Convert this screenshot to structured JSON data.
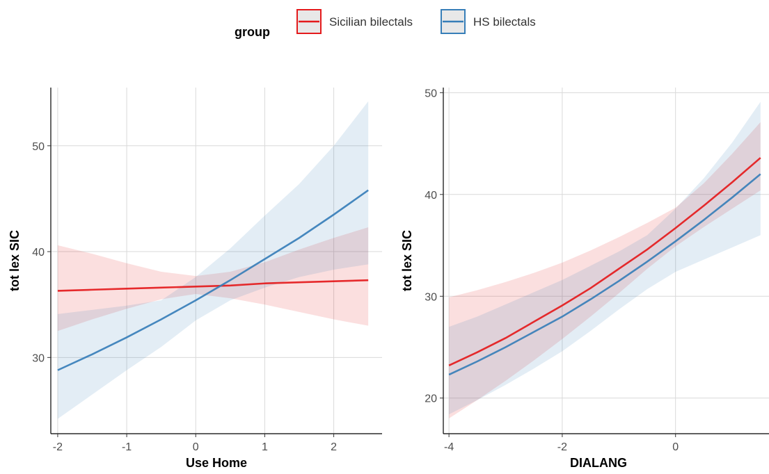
{
  "legend": {
    "title": "group",
    "position": "top-center",
    "entries": [
      {
        "label": "Sicilian bilectals",
        "color": "#E41A1C"
      },
      {
        "label": "HS bilectals",
        "color": "#377EB8"
      }
    ]
  },
  "chart_data": [
    {
      "type": "line",
      "xlabel": "Use Home",
      "ylabel": "tot lex SIC",
      "xlim": [
        -2.1,
        2.7
      ],
      "ylim": [
        22.8,
        55.5
      ],
      "xticks": [
        -2,
        -1,
        0,
        1,
        2
      ],
      "yticks": [
        30,
        40,
        50
      ],
      "grid": true,
      "series": [
        {
          "name": "Sicilian bilectals",
          "color": "#E41A1C",
          "x": [
            -2,
            -1.5,
            -1,
            -0.5,
            0,
            0.5,
            1,
            1.5,
            2,
            2.5
          ],
          "y": [
            36.3,
            36.4,
            36.5,
            36.6,
            36.7,
            36.8,
            37.0,
            37.1,
            37.2,
            37.3
          ],
          "lower": [
            32.5,
            33.6,
            34.6,
            35.5,
            36.0,
            35.6,
            35.0,
            34.3,
            33.6,
            33.0
          ],
          "upper": [
            40.6,
            39.8,
            38.9,
            38.1,
            37.7,
            38.1,
            39.0,
            40.2,
            41.3,
            42.3
          ]
        },
        {
          "name": "HS bilectals",
          "color": "#377EB8",
          "x": [
            -2,
            -1.5,
            -1,
            -0.5,
            0,
            0.5,
            1,
            1.5,
            2,
            2.5
          ],
          "y": [
            28.8,
            30.3,
            31.9,
            33.6,
            35.4,
            37.3,
            39.3,
            41.3,
            43.5,
            45.8
          ],
          "lower": [
            24.2,
            26.5,
            28.8,
            31.0,
            33.5,
            35.4,
            36.6,
            37.6,
            38.3,
            38.8
          ],
          "upper": [
            34.1,
            34.5,
            34.9,
            35.4,
            37.6,
            40.3,
            43.4,
            46.4,
            50.0,
            54.2
          ]
        }
      ]
    },
    {
      "type": "line",
      "xlabel": "DIALANG",
      "ylabel": "tot lex SIC",
      "xlim": [
        -4.1,
        1.65
      ],
      "ylim": [
        16.5,
        50.5
      ],
      "xticks": [
        -4,
        -2,
        0
      ],
      "yticks": [
        20,
        30,
        40,
        50
      ],
      "grid": true,
      "series": [
        {
          "name": "Sicilian bilectals",
          "color": "#E41A1C",
          "x": [
            -4,
            -3.5,
            -3,
            -2.5,
            -2,
            -1.5,
            -1,
            -0.5,
            0,
            0.5,
            1,
            1.5
          ],
          "y": [
            23.2,
            24.5,
            25.9,
            27.5,
            29.1,
            30.8,
            32.7,
            34.6,
            36.7,
            38.9,
            41.2,
            43.6
          ],
          "lower": [
            18.0,
            19.8,
            21.7,
            23.7,
            25.8,
            28.0,
            30.3,
            32.7,
            34.9,
            36.8,
            38.6,
            40.4
          ],
          "upper": [
            29.9,
            30.6,
            31.4,
            32.3,
            33.3,
            34.5,
            35.8,
            37.2,
            38.7,
            41.1,
            44.0,
            47.1
          ]
        },
        {
          "name": "HS bilectals",
          "color": "#377EB8",
          "x": [
            -4,
            -3.5,
            -3,
            -2.5,
            -2,
            -1.5,
            -1,
            -0.5,
            0,
            0.5,
            1,
            1.5
          ],
          "y": [
            22.3,
            23.6,
            25.0,
            26.5,
            28.0,
            29.7,
            31.5,
            33.4,
            35.4,
            37.5,
            39.7,
            42.0
          ],
          "lower": [
            18.4,
            19.8,
            21.3,
            22.9,
            24.6,
            26.6,
            28.7,
            30.7,
            32.4,
            33.6,
            34.8,
            36.0
          ],
          "upper": [
            27.0,
            28.0,
            29.2,
            30.4,
            31.6,
            33.0,
            34.4,
            36.0,
            38.6,
            41.6,
            45.1,
            49.1
          ]
        }
      ]
    }
  ]
}
